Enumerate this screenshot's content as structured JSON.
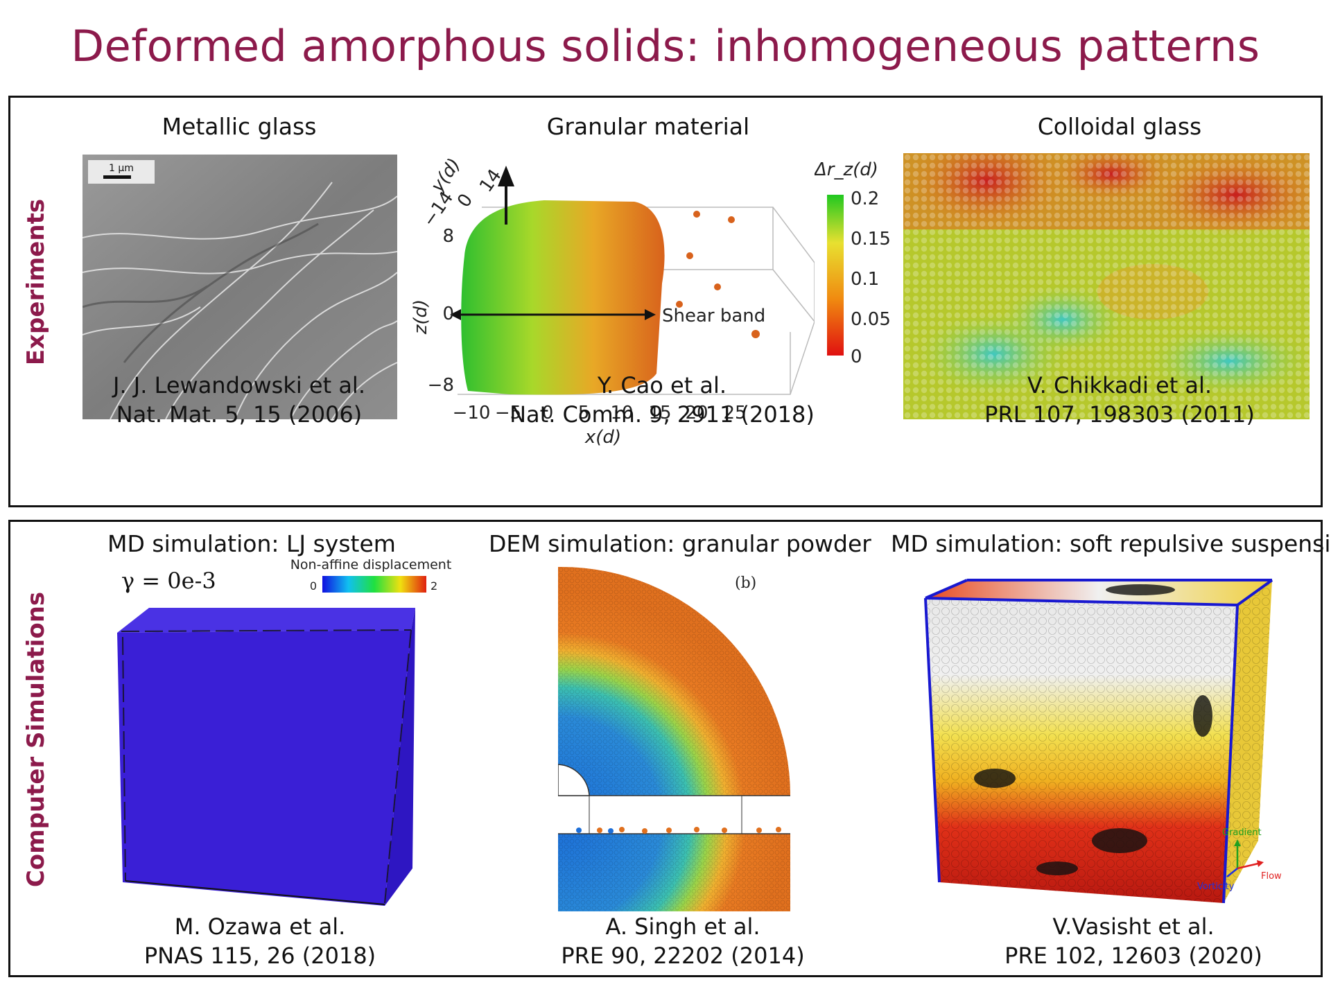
{
  "slide": {
    "title": "Deformed amorphous solids: inhomogeneous patterns"
  },
  "experiments": {
    "label": "Experiments",
    "items": [
      {
        "heading": "Metallic glass",
        "scale_bar": "1 μm",
        "author": "J. J. Lewandowski et al.",
        "ref": "Nat. Mat. 5, 15 (2006)"
      },
      {
        "heading": "Granular material",
        "author": "Y. Cao et al.",
        "ref": "Nat. Comm. 9, 2911 (2018)"
      },
      {
        "heading": "Colloidal glass",
        "author": "V. Chikkadi et al.",
        "ref": "PRL 107, 198303 (2011)"
      }
    ],
    "granular_plot": {
      "annotation": "Shear band",
      "colorbar_label": "Δr_z(d)",
      "colorbar_ticks": [
        "0.2",
        "0.15",
        "0.1",
        "0.05",
        "0"
      ],
      "x_label": "x(d)",
      "x_ticks": [
        "−10",
        "−5",
        "0",
        "5",
        "10",
        "15",
        "20",
        "25"
      ],
      "z_label": "z(d)",
      "z_ticks": [
        "8",
        "0",
        "−8"
      ],
      "y_label": "y(d)",
      "y_ticks": [
        "−14",
        "0",
        "14"
      ]
    }
  },
  "simulations": {
    "label": "Computer Simulations",
    "items": [
      {
        "heading": "MD simulation: LJ system",
        "author": "M. Ozawa et al.",
        "ref": "PNAS 115, 26 (2018)"
      },
      {
        "heading": "DEM simulation: granular powder",
        "author": "A. Singh et al.",
        "ref": "PRE 90, 22202 (2014)"
      },
      {
        "heading": "MD simulation: soft repulsive suspension",
        "author": "V.Vasisht et al.",
        "ref": "PRE 102, 12603 (2020)"
      }
    ],
    "lj": {
      "strain_label": "γ = 0e-3",
      "colorbar_title": "Non-affine displacement",
      "colorbar_min": "0",
      "colorbar_max": "2"
    },
    "dem": {
      "panel_label": "(b)"
    },
    "suspension": {
      "axis_gradient": "Gradient",
      "axis_flow": "Flow",
      "axis_vorticity": "Vorticity"
    }
  },
  "colors": {
    "title": "#8c1a4b",
    "lj_blue": "#3a1fd6"
  }
}
